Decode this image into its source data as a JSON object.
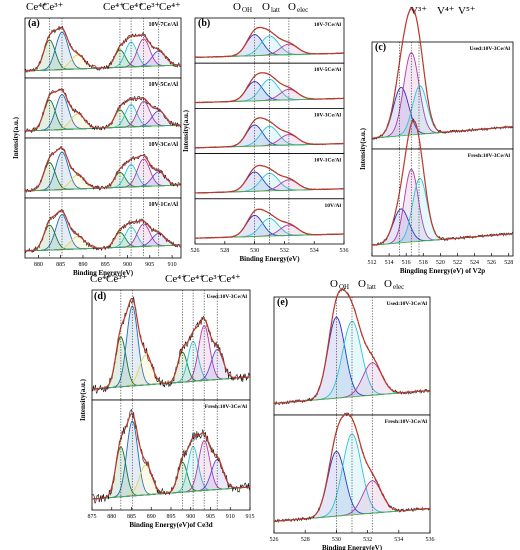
{
  "chart_data": [
    {
      "id": "a",
      "type": "line",
      "panel_label": "(a)",
      "peak_labels": [
        "Ce⁴⁺",
        "Ce³⁺",
        "Ce⁴⁺",
        "Ce⁴⁺",
        "Ce³⁺",
        "Ce⁴⁺"
      ],
      "xlabel": "Binding Energy(eV)",
      "ylabel": "Intensity(a.u.)",
      "xlim": [
        877,
        912
      ],
      "x_ticks": [
        880,
        885,
        890,
        895,
        900,
        905,
        910
      ],
      "guide_lines_x": [
        882.5,
        885.3,
        898.3,
        900.8,
        903.6,
        907.0
      ],
      "subplots": [
        {
          "title": "10V-7Ce/Al",
          "components": [
            {
              "color": "#1a7a1a",
              "center": 882.5,
              "amp": 0.6,
              "sigma": 1.3
            },
            {
              "color": "#1e6fb5",
              "center": 885.3,
              "amp": 0.75,
              "sigma": 1.4
            },
            {
              "color": "#e3d25a",
              "center": 888.8,
              "amp": 0.28,
              "sigma": 1.6
            },
            {
              "color": "#1a7a1a",
              "center": 898.3,
              "amp": 0.35,
              "sigma": 1.2
            },
            {
              "color": "#2ec4d6",
              "center": 900.8,
              "amp": 0.5,
              "sigma": 1.3
            },
            {
              "color": "#b23aa8",
              "center": 903.6,
              "amp": 0.55,
              "sigma": 1.4
            },
            {
              "color": "#5a4bd1",
              "center": 907.0,
              "amp": 0.3,
              "sigma": 1.5
            }
          ]
        },
        {
          "title": "10V-5Ce/Al",
          "components": [
            {
              "color": "#1a7a1a",
              "center": 882.5,
              "amp": 0.6,
              "sigma": 1.3
            },
            {
              "color": "#1e6fb5",
              "center": 885.3,
              "amp": 0.7,
              "sigma": 1.4
            },
            {
              "color": "#e3d25a",
              "center": 888.8,
              "amp": 0.3,
              "sigma": 1.6
            },
            {
              "color": "#1a7a1a",
              "center": 898.3,
              "amp": 0.35,
              "sigma": 1.2
            },
            {
              "color": "#2ec4d6",
              "center": 900.8,
              "amp": 0.45,
              "sigma": 1.3
            },
            {
              "color": "#b23aa8",
              "center": 903.6,
              "amp": 0.5,
              "sigma": 1.4
            },
            {
              "color": "#5a4bd1",
              "center": 907.0,
              "amp": 0.3,
              "sigma": 1.5
            }
          ]
        },
        {
          "title": "10V-3Ce/Al",
          "components": [
            {
              "color": "#1a7a1a",
              "center": 882.5,
              "amp": 0.55,
              "sigma": 1.3
            },
            {
              "color": "#1e6fb5",
              "center": 885.3,
              "amp": 0.75,
              "sigma": 1.4
            },
            {
              "color": "#e3d25a",
              "center": 888.8,
              "amp": 0.28,
              "sigma": 1.6
            },
            {
              "color": "#1a7a1a",
              "center": 898.3,
              "amp": 0.3,
              "sigma": 1.2
            },
            {
              "color": "#2ec4d6",
              "center": 900.8,
              "amp": 0.45,
              "sigma": 1.3
            },
            {
              "color": "#b23aa8",
              "center": 903.6,
              "amp": 0.55,
              "sigma": 1.4
            },
            {
              "color": "#5a4bd1",
              "center": 907.0,
              "amp": 0.28,
              "sigma": 1.5
            }
          ]
        },
        {
          "title": "10V-1Ce/Al",
          "components": [
            {
              "color": "#1a7a1a",
              "center": 882.5,
              "amp": 0.5,
              "sigma": 1.3
            },
            {
              "color": "#1e6fb5",
              "center": 885.3,
              "amp": 0.7,
              "sigma": 1.4
            },
            {
              "color": "#e3d25a",
              "center": 888.8,
              "amp": 0.25,
              "sigma": 1.6
            },
            {
              "color": "#1a7a1a",
              "center": 898.3,
              "amp": 0.3,
              "sigma": 1.2
            },
            {
              "color": "#2ec4d6",
              "center": 900.8,
              "amp": 0.4,
              "sigma": 1.3
            },
            {
              "color": "#b23aa8",
              "center": 903.6,
              "amp": 0.45,
              "sigma": 1.4
            },
            {
              "color": "#5a4bd1",
              "center": 907.0,
              "amp": 0.25,
              "sigma": 1.5
            }
          ]
        }
      ]
    },
    {
      "id": "b",
      "type": "line",
      "panel_label": "(b)",
      "peak_labels": [
        "O",
        "OH",
        "O",
        "latt",
        "O",
        "elec"
      ],
      "xlabel": "Binding Energy(eV)",
      "ylabel": "Intensity(a.u.)",
      "xlim": [
        526,
        536
      ],
      "x_ticks": [
        526,
        528,
        530,
        532,
        534,
        536
      ],
      "guide_lines_x": [
        530.0,
        531.0,
        532.3
      ],
      "subplots": [
        {
          "title": "10V-7Ce/Al",
          "components": [
            {
              "color": "#2230c8",
              "center": 530.0,
              "amp": 0.6,
              "sigma": 0.55
            },
            {
              "color": "#2ec4d6",
              "center": 531.0,
              "amp": 0.55,
              "sigma": 0.6
            },
            {
              "color": "#b23aa8",
              "center": 532.3,
              "amp": 0.3,
              "sigma": 0.6
            }
          ]
        },
        {
          "title": "10V-5Ce/Al",
          "components": [
            {
              "color": "#2230c8",
              "center": 530.0,
              "amp": 0.55,
              "sigma": 0.55
            },
            {
              "color": "#2ec4d6",
              "center": 531.0,
              "amp": 0.6,
              "sigma": 0.6
            },
            {
              "color": "#b23aa8",
              "center": 532.3,
              "amp": 0.3,
              "sigma": 0.6
            }
          ]
        },
        {
          "title": "10V-3Ce/Al",
          "components": [
            {
              "color": "#2230c8",
              "center": 530.0,
              "amp": 0.6,
              "sigma": 0.55
            },
            {
              "color": "#2ec4d6",
              "center": 531.0,
              "amp": 0.55,
              "sigma": 0.6
            },
            {
              "color": "#b23aa8",
              "center": 532.3,
              "amp": 0.3,
              "sigma": 0.6
            }
          ]
        },
        {
          "title": "10V-1Ce/Al",
          "components": [
            {
              "color": "#2230c8",
              "center": 530.0,
              "amp": 0.55,
              "sigma": 0.55
            },
            {
              "color": "#2ec4d6",
              "center": 531.0,
              "amp": 0.5,
              "sigma": 0.6
            },
            {
              "color": "#b23aa8",
              "center": 532.3,
              "amp": 0.3,
              "sigma": 0.6
            }
          ]
        },
        {
          "title": "10V/Al",
          "components": [
            {
              "color": "#2230c8",
              "center": 530.0,
              "amp": 0.6,
              "sigma": 0.55
            },
            {
              "color": "#2ec4d6",
              "center": 531.0,
              "amp": 0.5,
              "sigma": 0.6
            },
            {
              "color": "#b23aa8",
              "center": 532.3,
              "amp": 0.3,
              "sigma": 0.6
            }
          ]
        }
      ]
    },
    {
      "id": "c",
      "type": "line",
      "panel_label": "(c)",
      "peak_labels": [
        "V³⁺",
        "V⁴⁺",
        "V⁵⁺"
      ],
      "xlabel": "Bingding Energy(eV) of V2p",
      "ylabel": "Intensity(a.u.)",
      "xlim": [
        512,
        528.5
      ],
      "x_ticks": [
        512,
        514,
        516,
        518,
        520,
        522,
        524,
        526,
        528
      ],
      "guide_lines_x": [
        515.2,
        516.6,
        517.5
      ],
      "subplots": [
        {
          "title": "Used:10V-3Ce/Al",
          "components": [
            {
              "color": "#2230c8",
              "center": 515.4,
              "amp": 0.5,
              "sigma": 0.9
            },
            {
              "color": "#b23aa8",
              "center": 516.6,
              "amp": 0.85,
              "sigma": 0.9
            },
            {
              "color": "#2ec4d6",
              "center": 517.6,
              "amp": 0.5,
              "sigma": 0.85
            }
          ]
        },
        {
          "title": "Fresh:10V-3Ce/Al",
          "components": [
            {
              "color": "#2230c8",
              "center": 515.4,
              "amp": 0.35,
              "sigma": 0.9
            },
            {
              "color": "#b23aa8",
              "center": 516.6,
              "amp": 0.75,
              "sigma": 0.8
            },
            {
              "color": "#2ec4d6",
              "center": 517.6,
              "amp": 0.65,
              "sigma": 0.85
            }
          ]
        }
      ]
    },
    {
      "id": "d",
      "type": "line",
      "panel_label": "(d)",
      "peak_labels": [
        "Ce⁴⁺",
        "Ce³⁺",
        "Ce⁴⁺",
        "Ce⁴⁺",
        "Ce³⁺",
        "Ce⁴⁺"
      ],
      "xlabel": "Binding Energy(eV)of Ce3d",
      "ylabel": "Intensity(a.u.)",
      "xlim": [
        875,
        915
      ],
      "x_ticks": [
        875,
        880,
        885,
        890,
        895,
        900,
        905,
        910,
        915
      ],
      "guide_lines_x": [
        882.3,
        885.2,
        897.9,
        900.6,
        903.4,
        906.7
      ],
      "subplots": [
        {
          "title": "Used:10V-3Ce/Al",
          "components": [
            {
              "color": "#1a7a1a",
              "center": 882.3,
              "amp": 0.5,
              "sigma": 1.3
            },
            {
              "color": "#1e6fb5",
              "center": 885.2,
              "amp": 0.8,
              "sigma": 1.4
            },
            {
              "color": "#e3d25a",
              "center": 888.6,
              "amp": 0.3,
              "sigma": 1.6
            },
            {
              "color": "#1a7a1a",
              "center": 897.9,
              "amp": 0.3,
              "sigma": 1.2
            },
            {
              "color": "#2ec4d6",
              "center": 900.6,
              "amp": 0.4,
              "sigma": 1.3
            },
            {
              "color": "#b23aa8",
              "center": 903.4,
              "amp": 0.55,
              "sigma": 1.4
            },
            {
              "color": "#5a4bd1",
              "center": 906.7,
              "amp": 0.3,
              "sigma": 1.5
            }
          ]
        },
        {
          "title": "Fresh:10V-3Ce/Al",
          "components": [
            {
              "color": "#1a7a1a",
              "center": 882.3,
              "amp": 0.5,
              "sigma": 1.3
            },
            {
              "color": "#1e6fb5",
              "center": 885.2,
              "amp": 0.75,
              "sigma": 1.4
            },
            {
              "color": "#e3d25a",
              "center": 888.6,
              "amp": 0.3,
              "sigma": 1.6
            },
            {
              "color": "#1a7a1a",
              "center": 897.9,
              "amp": 0.3,
              "sigma": 1.2
            },
            {
              "color": "#2ec4d6",
              "center": 900.6,
              "amp": 0.45,
              "sigma": 1.3
            },
            {
              "color": "#b23aa8",
              "center": 903.4,
              "amp": 0.5,
              "sigma": 1.4
            },
            {
              "color": "#5a4bd1",
              "center": 906.7,
              "amp": 0.3,
              "sigma": 1.5
            }
          ]
        }
      ]
    },
    {
      "id": "e",
      "type": "line",
      "panel_label": "(e)",
      "peak_labels": [
        "O",
        "OH",
        "O",
        "latt",
        "O",
        "elec"
      ],
      "xlabel": "Binding Energy(eV)",
      "ylabel": "",
      "xlim": [
        526,
        536
      ],
      "x_ticks": [
        526,
        528,
        530,
        532,
        534,
        536
      ],
      "guide_lines_x": [
        530.0,
        531.0,
        532.3
      ],
      "subplots": [
        {
          "title": "Used:10V-3Ce/Al",
          "components": [
            {
              "color": "#2230c8",
              "center": 530.0,
              "amp": 0.75,
              "sigma": 0.55
            },
            {
              "color": "#2ec4d6",
              "center": 531.0,
              "amp": 0.7,
              "sigma": 0.6
            },
            {
              "color": "#b23aa8",
              "center": 532.3,
              "amp": 0.3,
              "sigma": 0.6
            }
          ]
        },
        {
          "title": "Fresh:10V-3Ce/Al",
          "components": [
            {
              "color": "#2230c8",
              "center": 530.0,
              "amp": 0.6,
              "sigma": 0.55
            },
            {
              "color": "#2ec4d6",
              "center": 531.0,
              "amp": 0.75,
              "sigma": 0.6
            },
            {
              "color": "#b23aa8",
              "center": 532.3,
              "amp": 0.3,
              "sigma": 0.6
            }
          ]
        }
      ]
    }
  ],
  "colors": {
    "raw": "#111111",
    "fit_envelope": "#c0392b",
    "fit_outline": "#6b3a1e",
    "background": "#3cbf3c",
    "guide_line": "#333333",
    "frame": "#000000"
  }
}
